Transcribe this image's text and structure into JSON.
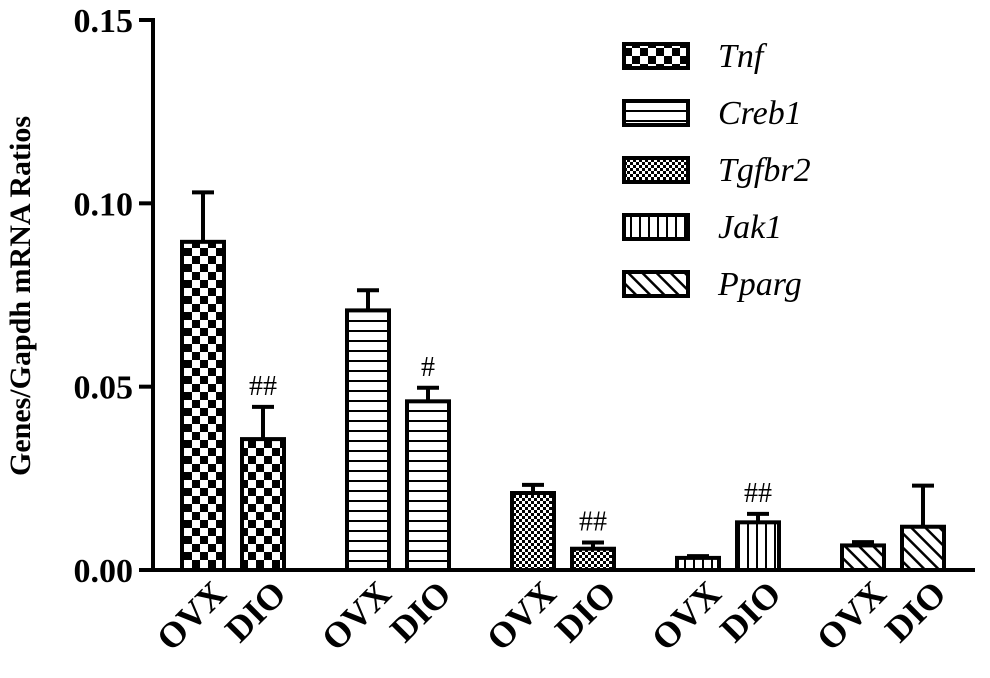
{
  "chart_data": {
    "type": "bar",
    "ylabel": "Genes/Gapdh mRNA Ratios",
    "ylim": [
      0,
      0.15
    ],
    "yticks": [
      "0.00",
      "0.05",
      "0.10",
      "0.15"
    ],
    "ytick_values": [
      0,
      0.05,
      0.1,
      0.15
    ],
    "legend_position": "top-right",
    "series": [
      {
        "name": "Tnf",
        "pattern": "checker",
        "categories": [
          "OVX",
          "DIO"
        ],
        "values": [
          0.0895,
          0.0357
        ],
        "errors": [
          0.0135,
          0.0088
        ],
        "annotations": [
          "",
          "##"
        ]
      },
      {
        "name": "Creb1",
        "pattern": "hlines",
        "categories": [
          "OVX",
          "DIO"
        ],
        "values": [
          0.0708,
          0.046
        ],
        "errors": [
          0.0055,
          0.0037
        ],
        "annotations": [
          "",
          "#"
        ]
      },
      {
        "name": "Tgfbr2",
        "pattern": "fine-checker",
        "categories": [
          "OVX",
          "DIO"
        ],
        "values": [
          0.021,
          0.0058
        ],
        "errors": [
          0.0022,
          0.0017
        ],
        "annotations": [
          "",
          "##"
        ]
      },
      {
        "name": "Jak1",
        "pattern": "vlines",
        "categories": [
          "OVX",
          "DIO"
        ],
        "values": [
          0.0033,
          0.013
        ],
        "errors": [
          0.0005,
          0.0023
        ],
        "annotations": [
          "",
          "##"
        ]
      },
      {
        "name": "Pparg",
        "pattern": "diagonal",
        "categories": [
          "OVX",
          "DIO"
        ],
        "values": [
          0.0067,
          0.0118
        ],
        "errors": [
          0.0009,
          0.0112
        ],
        "annotations": [
          "",
          ""
        ]
      }
    ]
  }
}
